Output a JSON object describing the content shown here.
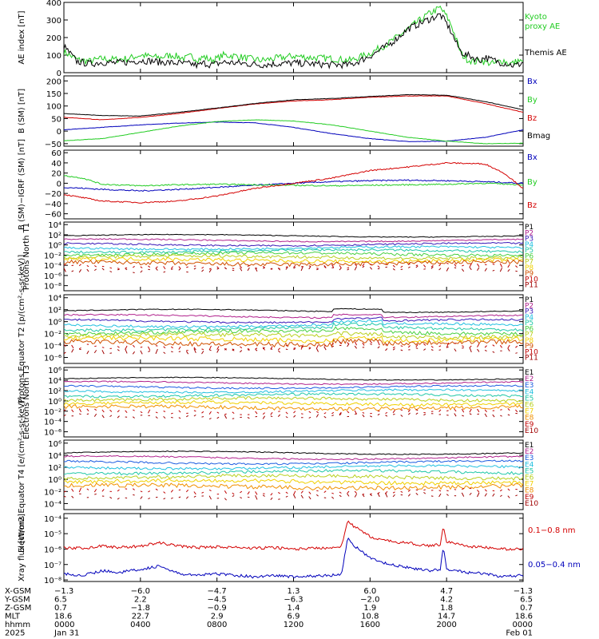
{
  "colors": {
    "black": "#000000",
    "red": "#d40000",
    "green": "#22cc22",
    "blue": "#0000bb",
    "ramp": [
      "#000000",
      "#b0208c",
      "#3a18b8",
      "#1c5ce0",
      "#22c0e0",
      "#22c8a8",
      "#48d040",
      "#b8d020",
      "#f0d000",
      "#f09000",
      "#d05000",
      "#c00000",
      "#a00000"
    ]
  },
  "chart_data": [
    {
      "id": "ae",
      "type": "line",
      "ylabel": "AE index [nT]",
      "ylim": [
        0,
        400
      ],
      "yticks": [
        "0",
        "100",
        "200",
        "300",
        "400"
      ],
      "yticks_values": [
        0,
        100,
        200,
        300,
        400
      ],
      "legend": [
        {
          "text": "Kyoto",
          "color": "green"
        },
        {
          "text": "proxy AE",
          "color": "green"
        },
        {
          "text": "Themis AE",
          "color": "black"
        }
      ],
      "series": [
        {
          "name": "Kyoto proxy AE",
          "color": "green",
          "x": [
            0,
            40,
            80,
            120,
            160,
            200,
            240,
            280,
            300,
            320,
            340,
            360,
            380,
            400,
            420,
            440,
            460,
            480,
            500,
            540,
            580,
            620,
            660,
            720,
            780,
            840,
            900,
            960,
            1020,
            1080,
            1140,
            1180,
            1200,
            1215,
            1230,
            1245,
            1260,
            1275,
            1290,
            1305,
            1320,
            1335,
            1350,
            1365,
            1380,
            1395,
            1410,
            1425,
            1440
          ],
          "y": [
            120,
            75,
            65,
            80,
            75,
            80,
            100,
            90,
            85,
            95,
            100,
            90,
            80,
            95,
            75,
            90,
            70,
            80,
            100,
            95,
            80,
            70,
            80,
            95,
            85,
            80,
            70,
            110,
            170,
            250,
            330,
            370,
            320,
            270,
            190,
            110,
            80,
            70,
            60,
            75,
            60,
            55,
            50,
            65,
            70,
            50,
            55,
            70,
            55
          ]
        },
        {
          "name": "Themis AE",
          "color": "black",
          "x": [
            0,
            40,
            80,
            120,
            160,
            200,
            240,
            280,
            300,
            320,
            340,
            360,
            380,
            400,
            420,
            440,
            460,
            480,
            500,
            540,
            580,
            620,
            660,
            720,
            780,
            840,
            900,
            960,
            1020,
            1080,
            1140,
            1180,
            1200,
            1215,
            1230,
            1245,
            1260,
            1275,
            1290,
            1305,
            1320,
            1335,
            1350,
            1365,
            1380,
            1395,
            1410,
            1425,
            1440
          ],
          "y": [
            150,
            65,
            50,
            60,
            55,
            60,
            70,
            65,
            60,
            60,
            55,
            55,
            50,
            50,
            40,
            55,
            45,
            50,
            60,
            55,
            50,
            45,
            50,
            55,
            50,
            45,
            45,
            95,
            160,
            250,
            300,
            330,
            280,
            230,
            170,
            120,
            100,
            95,
            80,
            70,
            90,
            75,
            70,
            60,
            55,
            50,
            40,
            45,
            60
          ]
        }
      ]
    },
    {
      "id": "bsm",
      "type": "line",
      "ylabel": "B (SM) [nT]",
      "ylim": [
        -60,
        220
      ],
      "yticks": [
        "−50",
        "0",
        "50",
        "100",
        "150",
        "200"
      ],
      "yticks_values": [
        -50,
        0,
        50,
        100,
        150,
        200
      ],
      "legend": [
        {
          "text": "Bx",
          "color": "blue"
        },
        {
          "text": "By",
          "color": "green"
        },
        {
          "text": "Bz",
          "color": "red"
        },
        {
          "text": "Bmag",
          "color": "black"
        }
      ],
      "series": [
        {
          "name": "Bx",
          "color": "blue",
          "x": [
            0,
            120,
            240,
            360,
            480,
            600,
            720,
            840,
            960,
            1080,
            1200,
            1320,
            1440
          ],
          "y": [
            5,
            15,
            25,
            32,
            36,
            33,
            15,
            -10,
            -30,
            -42,
            -40,
            -25,
            5
          ]
        },
        {
          "name": "By",
          "color": "green",
          "x": [
            0,
            120,
            240,
            360,
            480,
            600,
            720,
            840,
            960,
            1080,
            1200,
            1320,
            1440
          ],
          "y": [
            -38,
            -30,
            -5,
            20,
            38,
            45,
            40,
            25,
            0,
            -25,
            -40,
            -50,
            -48
          ]
        },
        {
          "name": "Bz",
          "color": "red",
          "x": [
            0,
            120,
            240,
            360,
            480,
            600,
            720,
            840,
            960,
            1080,
            1200,
            1320,
            1440
          ],
          "y": [
            55,
            45,
            55,
            70,
            90,
            108,
            120,
            125,
            135,
            140,
            140,
            110,
            75
          ]
        },
        {
          "name": "Bmag",
          "color": "black",
          "x": [
            0,
            120,
            240,
            360,
            480,
            600,
            720,
            840,
            960,
            1080,
            1200,
            1320,
            1440
          ],
          "y": [
            70,
            62,
            60,
            75,
            92,
            110,
            125,
            130,
            138,
            145,
            143,
            118,
            85
          ]
        }
      ]
    },
    {
      "id": "bigrf",
      "type": "line",
      "ylabel": "B (SM)−IGRF (SM) [nT]",
      "ylim": [
        -70,
        65
      ],
      "yticks": [
        "−60",
        "−40",
        "−20",
        "0",
        "20",
        "40",
        "60"
      ],
      "yticks_values": [
        -60,
        -40,
        -20,
        0,
        20,
        40,
        60
      ],
      "legend": [
        {
          "text": "Bx",
          "color": "blue"
        },
        {
          "text": "By",
          "color": "green"
        },
        {
          "text": "Bz",
          "color": "red"
        }
      ],
      "series": [
        {
          "name": "Bx",
          "color": "blue",
          "x": [
            0,
            120,
            240,
            360,
            480,
            600,
            720,
            840,
            960,
            1080,
            1200,
            1320,
            1440
          ],
          "y": [
            -8,
            -12,
            -15,
            -12,
            -8,
            -4,
            0,
            3,
            5,
            6,
            5,
            3,
            0
          ]
        },
        {
          "name": "By",
          "color": "green",
          "x": [
            0,
            60,
            120,
            240,
            360,
            480,
            600,
            720,
            840,
            960,
            1080,
            1200,
            1320,
            1440
          ],
          "y": [
            15,
            10,
            -2,
            -5,
            -3,
            -2,
            -3,
            -4,
            -5,
            -4,
            -3,
            -2,
            0,
            -3
          ]
        },
        {
          "name": "Bz",
          "color": "red",
          "x": [
            0,
            120,
            240,
            360,
            480,
            600,
            720,
            840,
            960,
            1080,
            1200,
            1320,
            1380,
            1440
          ],
          "y": [
            -22,
            -35,
            -38,
            -35,
            -25,
            -10,
            0,
            10,
            25,
            32,
            40,
            38,
            20,
            -10
          ]
        }
      ]
    },
    {
      "id": "p_north",
      "type": "line",
      "ylabel": "Protons North T1",
      "log_scale": true,
      "ylim_log": [
        -9,
        4.5
      ],
      "yticks": [
        "10⁻⁸",
        "10⁻⁶",
        "10⁻⁴",
        "10⁻²",
        "10⁰",
        "10²",
        "10⁴"
      ],
      "yticks_values": [
        -8,
        -6,
        -4,
        -2,
        0,
        2,
        4
      ],
      "channel_labels": [
        "P1",
        "P2",
        "P3",
        "P4",
        "P5",
        "P6",
        "P7",
        "P8",
        "P9",
        "P10",
        "P11"
      ],
      "channel_log_levels": [
        1.8,
        0.9,
        0.1,
        -0.6,
        -1.2,
        -1.8,
        -2.4,
        -3.0,
        -3.6,
        -4.2,
        -4.8
      ]
    },
    {
      "id": "p_equator",
      "type": "line",
      "ylabel": "Protons Equator T2 [p/(cm²-s-sr-keV)]",
      "log_scale": true,
      "ylim_log": [
        -7,
        4.5
      ],
      "yticks": [
        "10⁻⁶",
        "10⁻⁴",
        "10⁻²",
        "10⁰",
        "10²",
        "10⁴"
      ],
      "yticks_values": [
        -6,
        -4,
        -2,
        0,
        2,
        4
      ],
      "channel_labels": [
        "P1",
        "P2",
        "P3",
        "P4",
        "P5",
        "P6",
        "P7",
        "P8",
        "P9",
        "P10",
        "P11"
      ],
      "channel_log_levels": [
        1.8,
        0.9,
        0.1,
        -0.6,
        -1.2,
        -1.8,
        -2.4,
        -3.0,
        -3.6,
        -4.2,
        -4.8
      ]
    },
    {
      "id": "e_north",
      "type": "line",
      "ylabel": "Electrons North T3",
      "log_scale": true,
      "ylim_log": [
        -7,
        6.5
      ],
      "yticks": [
        "10⁻⁶",
        "10⁻⁴",
        "10⁻²",
        "10⁰",
        "10²",
        "10⁴",
        "10⁶"
      ],
      "yticks_values": [
        -6,
        -4,
        -2,
        0,
        2,
        4,
        6
      ],
      "channel_labels": [
        "E1",
        "E2",
        "E3",
        "E4",
        "E5",
        "E6",
        "E7",
        "E8",
        "E9",
        "E10"
      ],
      "channel_log_levels": [
        4.3,
        3.5,
        2.7,
        1.9,
        1.1,
        0.3,
        -0.5,
        -1.3,
        -2.1,
        -2.9
      ]
    },
    {
      "id": "e_equator",
      "type": "line",
      "ylabel": "Electrons Equator T4 [e/(cm²-s-sr-keV)]",
      "log_scale": true,
      "ylim_log": [
        -5,
        6.5
      ],
      "yticks": [
        "10⁻⁴",
        "10⁻²",
        "10⁰",
        "10²",
        "10⁴",
        "10⁶"
      ],
      "yticks_values": [
        -4,
        -2,
        0,
        2,
        4,
        6
      ],
      "channel_labels": [
        "E1",
        "E2",
        "E3",
        "E4",
        "E5",
        "E6",
        "E7",
        "E8",
        "E9",
        "E10"
      ],
      "channel_log_levels": [
        4.4,
        3.6,
        2.8,
        2.0,
        1.2,
        0.4,
        -0.4,
        -1.2,
        -2.0,
        -2.8
      ]
    },
    {
      "id": "xray",
      "type": "line",
      "ylabel": "Xray flux [W/m2]",
      "log_scale": true,
      "ylim_log": [
        -8.1,
        -3.7
      ],
      "yticks": [
        "10⁻⁸",
        "10⁻⁷",
        "10⁻⁶",
        "10⁻⁵",
        "10⁻⁴"
      ],
      "yticks_values": [
        -8,
        -7,
        -6,
        -5,
        -4
      ],
      "legend": [
        {
          "text": "0.1−0.8 nm",
          "color": "red"
        },
        {
          "text": "0.05−0.4 nm",
          "color": "blue"
        }
      ],
      "series": [
        {
          "name": "0.1−0.8 nm",
          "color": "red",
          "x": [
            0,
            60,
            120,
            180,
            240,
            300,
            360,
            420,
            480,
            540,
            600,
            660,
            720,
            780,
            840,
            870,
            880,
            890,
            900,
            930,
            960,
            1020,
            1080,
            1140,
            1180,
            1190,
            1200,
            1260,
            1320,
            1380,
            1440
          ],
          "y": [
            -5.9,
            -5.95,
            -5.8,
            -5.9,
            -5.8,
            -5.6,
            -5.8,
            -5.9,
            -5.85,
            -5.9,
            -5.95,
            -5.9,
            -6.0,
            -5.95,
            -5.9,
            -5.8,
            -5.0,
            -4.15,
            -4.4,
            -4.8,
            -5.2,
            -5.5,
            -5.6,
            -5.8,
            -5.7,
            -4.5,
            -5.5,
            -5.8,
            -5.9,
            -6.0,
            -6.0
          ]
        },
        {
          "name": "0.05−0.4 nm",
          "color": "blue",
          "x": [
            0,
            60,
            120,
            180,
            240,
            300,
            360,
            420,
            480,
            540,
            600,
            660,
            720,
            780,
            840,
            870,
            880,
            890,
            900,
            930,
            960,
            1020,
            1080,
            1140,
            1180,
            1190,
            1200,
            1260,
            1320,
            1380,
            1440
          ],
          "y": [
            -7.6,
            -7.7,
            -7.4,
            -7.5,
            -7.3,
            -7.1,
            -7.6,
            -7.7,
            -7.6,
            -7.7,
            -7.8,
            -7.7,
            -7.8,
            -7.75,
            -7.7,
            -7.6,
            -6.5,
            -5.2,
            -5.6,
            -6.1,
            -6.6,
            -7.0,
            -7.2,
            -7.4,
            -7.3,
            -5.9,
            -7.3,
            -7.5,
            -7.6,
            -7.8,
            -7.7
          ]
        }
      ]
    }
  ],
  "x_axis": {
    "tick_minutes": [
      0,
      240,
      480,
      720,
      960,
      1200,
      1440
    ],
    "row_labels": [
      "X-GSM",
      "Y-GSM",
      "Z-GSM",
      "MLT",
      "hhmm",
      "2025"
    ],
    "columns": [
      [
        "−1.3",
        "6.5",
        "0.7",
        "18.6",
        "0000",
        "Jan 31"
      ],
      [
        "−6.0",
        "2.2",
        "−1.8",
        "22.7",
        "0400",
        ""
      ],
      [
        "−4.7",
        "−4.5",
        "−0.9",
        "2.9",
        "0800",
        ""
      ],
      [
        "1.3",
        "−6.3",
        "1.4",
        "6.9",
        "1200",
        ""
      ],
      [
        "6.0",
        "−2.0",
        "1.9",
        "10.8",
        "1600",
        ""
      ],
      [
        "4.7",
        "4.2",
        "1.8",
        "14.7",
        "2000",
        ""
      ],
      [
        "−1.3",
        "6.5",
        "0.7",
        "18.6",
        "0000",
        "Feb 01"
      ]
    ]
  }
}
